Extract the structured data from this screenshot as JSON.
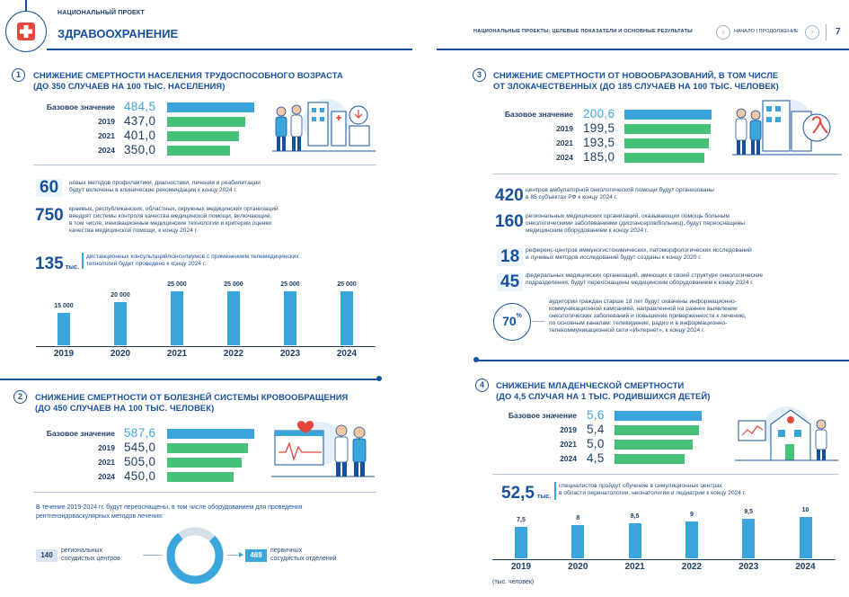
{
  "header": {
    "project_label": "НАЦИОНАЛЬНЫЙ ПРОЕКТ",
    "project_title": "ЗДРАВООХРАНЕНИЕ",
    "right_label": "НАЦИОНАЛЬНЫЕ ПРОЕКТЫ: ЦЕЛЕВЫЕ ПОКАЗАТЕЛИ И ОСНОВНЫЕ РЕЗУЛЬТАТЫ",
    "nav_text": "НАЧАЛО | ПРОДОЛЖЕНИЕ",
    "page_number": "7"
  },
  "colors": {
    "primary": "#17509c",
    "bar_base": "#3aa6dc",
    "bar_target": "#47c07a",
    "logo_red": "#e3473f"
  },
  "sections": [
    {
      "number": "1",
      "title_line1": "СНИЖЕНИЕ СМЕРТНОСТИ НАСЕЛЕНИЯ ТРУДОСПОСОБНОГО ВОЗРАСТА",
      "title_line2": "(ДО 350 СЛУЧАЕВ НА 100 ТЫС. НАСЕЛЕНИЯ)",
      "rows": [
        {
          "label": "Базовое значение",
          "value": "484,5",
          "v": 484.5
        },
        {
          "label": "2019",
          "value": "437,0",
          "v": 437.0
        },
        {
          "label": "2021",
          "value": "401,0",
          "v": 401.0
        },
        {
          "label": "2024",
          "value": "350,0",
          "v": 350.0
        }
      ]
    },
    {
      "number": "2",
      "title_line1": "СНИЖЕНИЕ СМЕРТНОСТИ ОТ БОЛЕЗНЕЙ СИСТЕМЫ КРОВООБРАЩЕНИЯ",
      "title_line2": "(ДО 450 СЛУЧАЕВ НА 100 ТЫС. ЧЕЛОВЕК)",
      "rows": [
        {
          "label": "Базовое значение",
          "value": "587,6",
          "v": 587.6
        },
        {
          "label": "2019",
          "value": "545,0",
          "v": 545.0
        },
        {
          "label": "2021",
          "value": "505,0",
          "v": 505.0
        },
        {
          "label": "2024",
          "value": "450,0",
          "v": 450.0
        }
      ]
    },
    {
      "number": "3",
      "title_line1": "СНИЖЕНИЕ СМЕРТНОСТИ ОТ НОВООБРАЗОВАНИЙ, В ТОМ ЧИСЛЕ",
      "title_line2": "ОТ ЗЛОКАЧЕСТВЕННЫХ (ДО 185 СЛУЧАЕВ НА 100 ТЫС. ЧЕЛОВЕК)",
      "rows": [
        {
          "label": "Базовое значение",
          "value": "200,6",
          "v": 200.6
        },
        {
          "label": "2019",
          "value": "199,5",
          "v": 199.5
        },
        {
          "label": "2021",
          "value": "193,5",
          "v": 193.5
        },
        {
          "label": "2024",
          "value": "185,0",
          "v": 185.0
        }
      ]
    },
    {
      "number": "4",
      "title_line1": "СНИЖЕНИЕ МЛАДЕНЧЕСКОЙ СМЕРТНОСТИ",
      "title_line2": "(ДО 4,5 СЛУЧАЯ НА 1 ТЫС. РОДИВШИХСЯ ДЕТЕЙ)",
      "rows": [
        {
          "label": "Базовое значение",
          "value": "5,6",
          "v": 5.6
        },
        {
          "label": "2019",
          "value": "5,4",
          "v": 5.4
        },
        {
          "label": "2021",
          "value": "5,0",
          "v": 5.0
        },
        {
          "label": "2024",
          "value": "4,5",
          "v": 4.5
        }
      ]
    }
  ],
  "facts_left": [
    {
      "num": "60",
      "unit": "",
      "text1": "новых методов профилактики, диагностики, лечения и реабилитации",
      "text2": "будут включены в клинические рекомендации к концу 2024 г.",
      "text3": "",
      "text4": ""
    },
    {
      "num": "750",
      "unit": "",
      "text1": "краевых, республиканских, областных, окружных медицинских организаций",
      "text2": "внедрят системы контроля качества медицинской помощи, включающие,",
      "text3": "в том числе, инновационные медицинские технологии и критерии оценки",
      "text4": "качества медицинской помощи, к концу 2024 г."
    },
    {
      "num": "135",
      "unit": "тыс.",
      "text1": "дистанционных консультаций/консилиумов с применением телемедицинских",
      "text2": "технологий будет проведено к концу 2024 г.",
      "text3": "",
      "text4": ""
    }
  ],
  "tele_chart": {
    "type": "bar",
    "categories": [
      "2019",
      "2020",
      "2021",
      "2022",
      "2023",
      "2024"
    ],
    "values": [
      15000,
      20000,
      25000,
      25000,
      25000,
      25000
    ],
    "labels": [
      "15 000",
      "20 000",
      "25 000",
      "25 000",
      "25 000",
      "25 000"
    ]
  },
  "equipment": {
    "text1": "В течение 2019-2024 гг. будут переоснащены, в том числе оборудованием для проведения",
    "text2": "рентгенэндоваскулярных методов лечения:",
    "left_num": "140",
    "left_text1": "региональных",
    "left_text2": "сосудистых центров",
    "right_num": "469",
    "right_text1": "первичных",
    "right_text2": "сосудистых отделений"
  },
  "facts_right": [
    {
      "num": "420",
      "text1": "центров амбулаторной онкологической помощи будут организованы",
      "text2": "в 85 субъектах РФ к концу 2024 г.",
      "text3": ""
    },
    {
      "num": "160",
      "text1": "региональных медицинских организаций, оказывающих помощь больным",
      "text2": "онкологическими заболеваниями (диспансеров/больниц), будут переоснащены",
      "text3": "медицинским оборудованием к концу 2024 г."
    },
    {
      "num": "18",
      "text1": "референс-центров иммуногистохимических, патоморфологических исследований",
      "text2": "и лучевых методов исследований будут созданы к концу 2020 г.",
      "text3": ""
    },
    {
      "num": "45",
      "text1": "федеральных медицинских организаций, имеющих в своей структуре онкологические",
      "text2": "подразделения, будут переоснащены медицинским оборудованием к концу 2024 г.",
      "text3": ""
    }
  ],
  "percent_fact": {
    "num": "70",
    "sign": "%",
    "lines": [
      "аудитории граждан старше 18 лет будут охвачены информационно-",
      "коммуникационной кампанией, направленной на раннее выявление",
      "онкологических заболеваний и повышение приверженности к лечению,",
      "по основным каналам: телевидение, радио и в информационно-",
      "телекоммуникационной сети «Интернет», к концу 2024 г."
    ]
  },
  "training": {
    "num": "52,5",
    "unit": "тыс.",
    "text1": "специалистов пройдут обучение в симуляционных центрах",
    "text2": "в области перинатологии, неонатологии и педиатрии к концу 2024 г."
  },
  "chart_data": {
    "type": "bar",
    "categories": [
      "2019",
      "2020",
      "2021",
      "2022",
      "2023",
      "2024"
    ],
    "values": [
      7.5,
      8,
      8.5,
      9,
      9.5,
      10
    ],
    "labels": [
      "7,5",
      "8",
      "8,5",
      "9",
      "9,5",
      "10"
    ],
    "unit_label": "(тыс. человек)"
  }
}
